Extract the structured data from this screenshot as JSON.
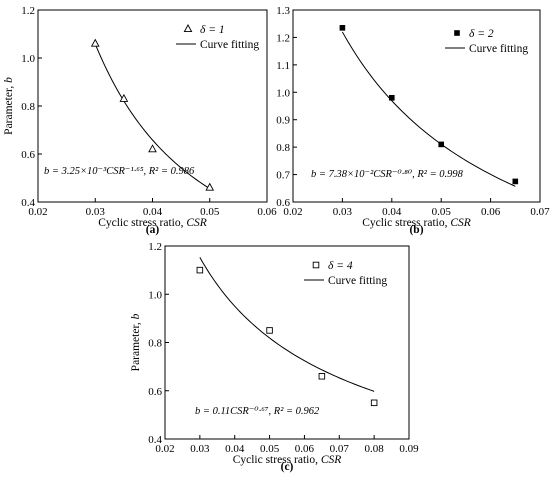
{
  "chart_data": [
    {
      "type": "scatter",
      "panel_label": "(a)",
      "xlabel": "Cyclic stress ratio, ",
      "xlabel_italic": "CSR",
      "ylabel": "Parameter, ",
      "ylabel_italic": "b",
      "xlim": [
        0.02,
        0.06
      ],
      "ylim": [
        0.4,
        1.2
      ],
      "xticks": [
        "0.02",
        "0.03",
        "0.04",
        "0.05",
        "0.06"
      ],
      "yticks": [
        "0.4",
        "0.6",
        "0.8",
        "1.0",
        "1.2"
      ],
      "legend": {
        "position": "top-right",
        "marker_label": "δ = 1",
        "line_label": "Curve fitting"
      },
      "marker": "triangle-open",
      "series": [
        {
          "name": "δ = 1",
          "x": [
            0.03,
            0.035,
            0.04,
            0.05
          ],
          "y": [
            1.06,
            0.83,
            0.62,
            0.46
          ]
        }
      ],
      "fit": {
        "a": 0.00325,
        "n": -1.65,
        "x_from": 0.03,
        "x_to": 0.05
      },
      "equation": "b = 3.25×10⁻³CSR⁻¹·⁶⁵,  R² = 0.986"
    },
    {
      "type": "scatter",
      "panel_label": "(b)",
      "xlabel": "Cyclic stress ratio, ",
      "xlabel_italic": "CSR",
      "ylabel": "",
      "ylabel_italic": "",
      "xlim": [
        0.02,
        0.07
      ],
      "ylim": [
        0.6,
        1.3
      ],
      "xticks": [
        "0.02",
        "0.03",
        "0.04",
        "0.05",
        "0.06",
        "0.07"
      ],
      "yticks": [
        "0.6",
        "0.7",
        "0.8",
        "0.9",
        "1.0",
        "1.1",
        "1.2",
        "1.3"
      ],
      "legend": {
        "position": "top-right",
        "marker_label": "δ = 2",
        "line_label": "Curve fitting"
      },
      "marker": "square-filled",
      "series": [
        {
          "name": "δ = 2",
          "x": [
            0.03,
            0.04,
            0.05,
            0.065
          ],
          "y": [
            1.235,
            0.98,
            0.81,
            0.675
          ]
        }
      ],
      "fit": {
        "a": 0.0738,
        "n": -0.8,
        "x_from": 0.03,
        "x_to": 0.065
      },
      "equation": "b = 7.38×10⁻²CSR⁻⁰·⁸⁰,  R² = 0.998"
    },
    {
      "type": "scatter",
      "panel_label": "(c)",
      "xlabel": "Cyclic stress ratio, ",
      "xlabel_italic": "CSR",
      "ylabel": "Parameter, ",
      "ylabel_italic": "b",
      "xlim": [
        0.02,
        0.09
      ],
      "ylim": [
        0.4,
        1.2
      ],
      "xticks": [
        "0.02",
        "0.03",
        "0.04",
        "0.05",
        "0.06",
        "0.07",
        "0.08",
        "0.09"
      ],
      "yticks": [
        "0.4",
        "0.6",
        "0.8",
        "1.0",
        "1.2"
      ],
      "legend": {
        "position": "top-right",
        "marker_label": "δ = 4",
        "line_label": "Curve fitting"
      },
      "marker": "square-open",
      "series": [
        {
          "name": "δ = 4",
          "x": [
            0.03,
            0.05,
            0.065,
            0.08
          ],
          "y": [
            1.1,
            0.85,
            0.66,
            0.55
          ]
        }
      ],
      "fit": {
        "a": 0.11,
        "n": -0.67,
        "x_from": 0.03,
        "x_to": 0.08
      },
      "equation": "b = 0.11CSR⁻⁰·⁶⁷,  R² = 0.962"
    }
  ]
}
